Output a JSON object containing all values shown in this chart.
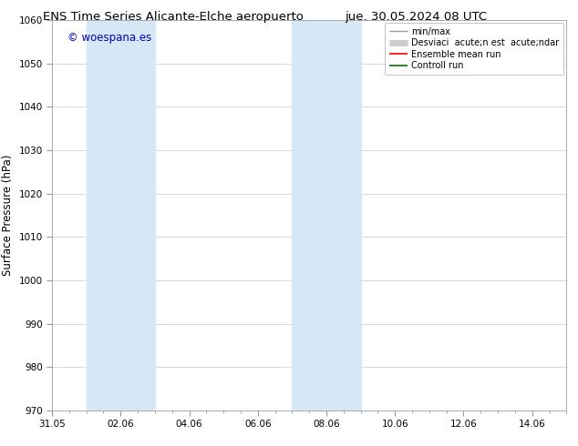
{
  "title_left": "ENS Time Series Alicante-Elche aeropuerto",
  "title_right": "jue. 30.05.2024 08 UTC",
  "ylabel": "Surface Pressure (hPa)",
  "ylim": [
    970,
    1060
  ],
  "yticks": [
    970,
    980,
    990,
    1000,
    1010,
    1020,
    1030,
    1040,
    1050,
    1060
  ],
  "xlim": [
    0,
    15
  ],
  "xtick_labels": [
    "31.05",
    "02.06",
    "04.06",
    "06.06",
    "08.06",
    "10.06",
    "12.06",
    "14.06"
  ],
  "xtick_positions": [
    0,
    2,
    4,
    6,
    8,
    10,
    12,
    14
  ],
  "shaded_regions": [
    {
      "start": 1.0,
      "end": 3.0,
      "color": "#d6e8f5"
    },
    {
      "start": 7.0,
      "end": 9.0,
      "color": "#d6e8f5"
    }
  ],
  "watermark": "© woespana.es",
  "watermark_color": "#0000bb",
  "background_color": "#ffffff",
  "plot_bg_color": "#ffffff",
  "grid_color": "#cccccc",
  "legend_labels": [
    "min/max",
    "Desviaci  acute;n est  acute;ndar",
    "Ensemble mean run",
    "Controll run"
  ],
  "legend_colors": [
    "#999999",
    "#cccccc",
    "#ff0000",
    "#007700"
  ],
  "legend_lw": [
    1.0,
    5.0,
    1.2,
    1.2
  ],
  "title_fontsize": 9.5,
  "tick_fontsize": 7.5,
  "axis_label_fontsize": 8.5,
  "watermark_fontsize": 8.5,
  "legend_fontsize": 7.0
}
